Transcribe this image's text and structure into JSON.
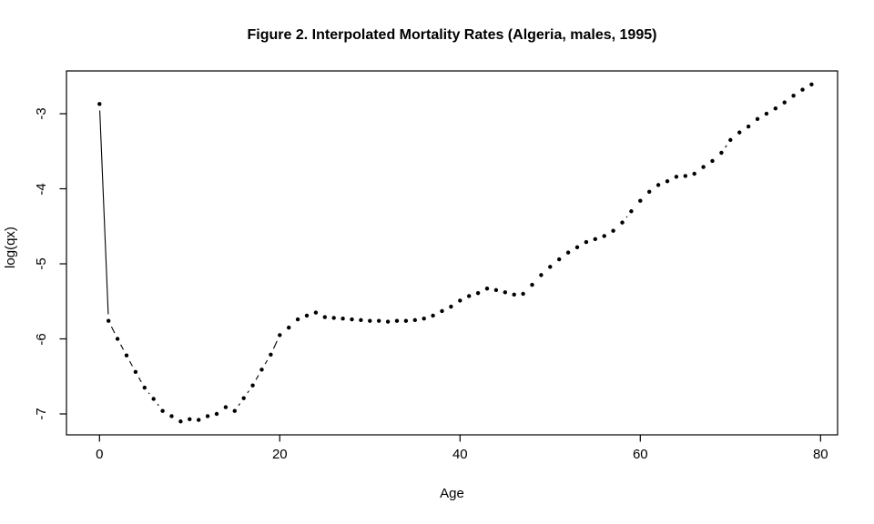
{
  "chart_data": {
    "type": "scatter",
    "title": "Figure 2. Interpolated Mortality Rates (Algeria, males, 1995)",
    "xlabel": "Age",
    "ylabel": "log(qx)",
    "x_ticks": [
      0,
      20,
      40,
      60,
      80
    ],
    "y_ticks": [
      -3,
      -4,
      -5,
      -6,
      -7
    ],
    "xlim": [
      -3.7,
      81.9
    ],
    "ylim": [
      -7.28,
      -2.43
    ],
    "grid": false,
    "legend": "none",
    "marker": "filled-circle",
    "connector_style": "short line segments between points (R type='b')",
    "point_color": "#000000",
    "line_color": "#000000",
    "background_color": "#ffffff",
    "series": [
      {
        "name": "log(qx)",
        "x": [
          0,
          1,
          2,
          3,
          4,
          5,
          6,
          7,
          8,
          9,
          10,
          11,
          12,
          13,
          14,
          15,
          16,
          17,
          18,
          19,
          20,
          21,
          22,
          23,
          24,
          25,
          26,
          27,
          28,
          29,
          30,
          31,
          32,
          33,
          34,
          35,
          36,
          37,
          38,
          39,
          40,
          41,
          42,
          43,
          44,
          45,
          46,
          47,
          48,
          49,
          50,
          51,
          52,
          53,
          54,
          55,
          56,
          57,
          58,
          59,
          60,
          61,
          62,
          63,
          64,
          65,
          66,
          67,
          68,
          69,
          70,
          71,
          72,
          73,
          74,
          75,
          76,
          77,
          78,
          79
        ],
        "y": [
          -2.87,
          -5.76,
          -6.0,
          -6.22,
          -6.44,
          -6.65,
          -6.8,
          -6.96,
          -7.03,
          -7.1,
          -7.07,
          -7.08,
          -7.03,
          -7.0,
          -6.91,
          -6.96,
          -6.79,
          -6.62,
          -6.41,
          -6.21,
          -5.95,
          -5.85,
          -5.74,
          -5.69,
          -5.65,
          -5.71,
          -5.72,
          -5.73,
          -5.74,
          -5.75,
          -5.76,
          -5.76,
          -5.77,
          -5.76,
          -5.76,
          -5.75,
          -5.73,
          -5.69,
          -5.63,
          -5.57,
          -5.49,
          -5.43,
          -5.39,
          -5.33,
          -5.35,
          -5.38,
          -5.41,
          -5.4,
          -5.28,
          -5.15,
          -5.04,
          -4.94,
          -4.85,
          -4.78,
          -4.71,
          -4.67,
          -4.63,
          -4.56,
          -4.45,
          -4.3,
          -4.16,
          -4.04,
          -3.95,
          -3.9,
          -3.84,
          -3.83,
          -3.8,
          -3.71,
          -3.63,
          -3.52,
          -3.35,
          -3.25,
          -3.17,
          -3.07,
          -3.0,
          -2.93,
          -2.85,
          -2.76,
          -2.68,
          -2.61
        ]
      }
    ]
  }
}
